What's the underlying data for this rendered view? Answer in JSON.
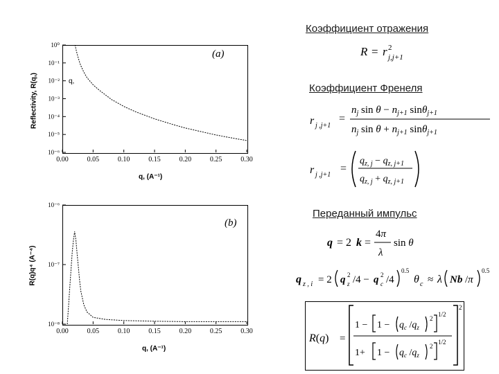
{
  "headings": {
    "reflection": "Коэффициент отражения",
    "fresnel": "Коэффициент Френеля",
    "momentum": "Переданный импульс"
  },
  "formulas": {
    "reflectance": "R = r²j,j+1",
    "fresnel_angle": "r_{j,j+1} = (n_j sinθ_j − n_{j+1} sinθ_{j+1}) / (n_j sinθ_j + n_{j+1} sinθ_{j+1})",
    "fresnel_q": "r_{j,j+1} = (q_{z,j} − q_{z,j+1}) / (q_{z,j} + q_{z,j+1})",
    "momentum": "q = 2k = (4π/λ) sinθ",
    "qzj": "q_{z,j} = 2(q_z²/4 − q_c²/4)^0.5",
    "theta_c": "θ_c ≈ λ(Nb/π)^0.5",
    "R_of_q": "R(q) = [ (1 − [1 − (q_c/q_z)²]^{1/2}) / (1 + [1 − (q_c/q_z)²]^{1/2}) ]²"
  },
  "chart_data": [
    {
      "type": "line",
      "panel_label": "(a)",
      "xlabel": "q, (A⁻¹)",
      "ylabel": "Reflectivity, R(q,)",
      "annotation": "q,",
      "xlim": [
        0.0,
        0.3
      ],
      "ylim_log10": [
        -6,
        0
      ],
      "x_ticks": [
        "0.00",
        "0.05",
        "0.10",
        "0.15",
        "0.20",
        "0.25",
        "0.30"
      ],
      "y_ticks": [
        "10⁰",
        "10⁻¹",
        "10⁻²",
        "10⁻³",
        "10⁻⁴",
        "10⁻⁵",
        "10⁻⁶"
      ],
      "series": [
        {
          "x": [
            0.02,
            0.021,
            0.022,
            0.024,
            0.026,
            0.028,
            0.03,
            0.035,
            0.04,
            0.05,
            0.06,
            0.08,
            0.1,
            0.12,
            0.15,
            0.18,
            0.2,
            0.22,
            0.25,
            0.28,
            0.3
          ],
          "y": [
            1.0,
            0.9,
            0.6,
            0.32,
            0.18,
            0.11,
            0.07,
            0.03,
            0.015,
            0.006,
            0.003,
            0.0009,
            0.00037,
            0.00018,
            7.5e-05,
            3.6e-05,
            2.3e-05,
            1.6e-05,
            9.4e-06,
            6e-06,
            4.6e-06
          ]
        }
      ]
    },
    {
      "type": "line",
      "panel_label": "(b)",
      "xlabel": "q, (A⁻¹)",
      "ylabel": "R(q)q⁴ (A⁻⁴)",
      "xlim": [
        0.0,
        0.3
      ],
      "ylim_log10": [
        -8,
        -6
      ],
      "x_ticks": [
        "0.00",
        "0.05",
        "0.10",
        "0.15",
        "0.20",
        "0.25",
        "0.30"
      ],
      "y_ticks": [
        "10⁻⁶",
        "10⁻⁷",
        "10⁻⁸"
      ],
      "series": [
        {
          "x": [
            0.008,
            0.01,
            0.012,
            0.014,
            0.016,
            0.018,
            0.02,
            0.022,
            0.024,
            0.026,
            0.028,
            0.03,
            0.035,
            0.04,
            0.05,
            0.07,
            0.1,
            0.15,
            0.2,
            0.25,
            0.3
          ],
          "y": [
            1e-08,
            2e-08,
            4e-08,
            8e-08,
            1.6e-07,
            2.6e-07,
            3.6e-07,
            2.6e-07,
            1.5e-07,
            9e-08,
            5.5e-08,
            3.6e-08,
            2.1e-08,
            1.6e-08,
            1.3e-08,
            1.2e-08,
            1.15e-08,
            1.12e-08,
            1.1e-08,
            1.1e-08,
            1.1e-08
          ]
        }
      ]
    }
  ]
}
